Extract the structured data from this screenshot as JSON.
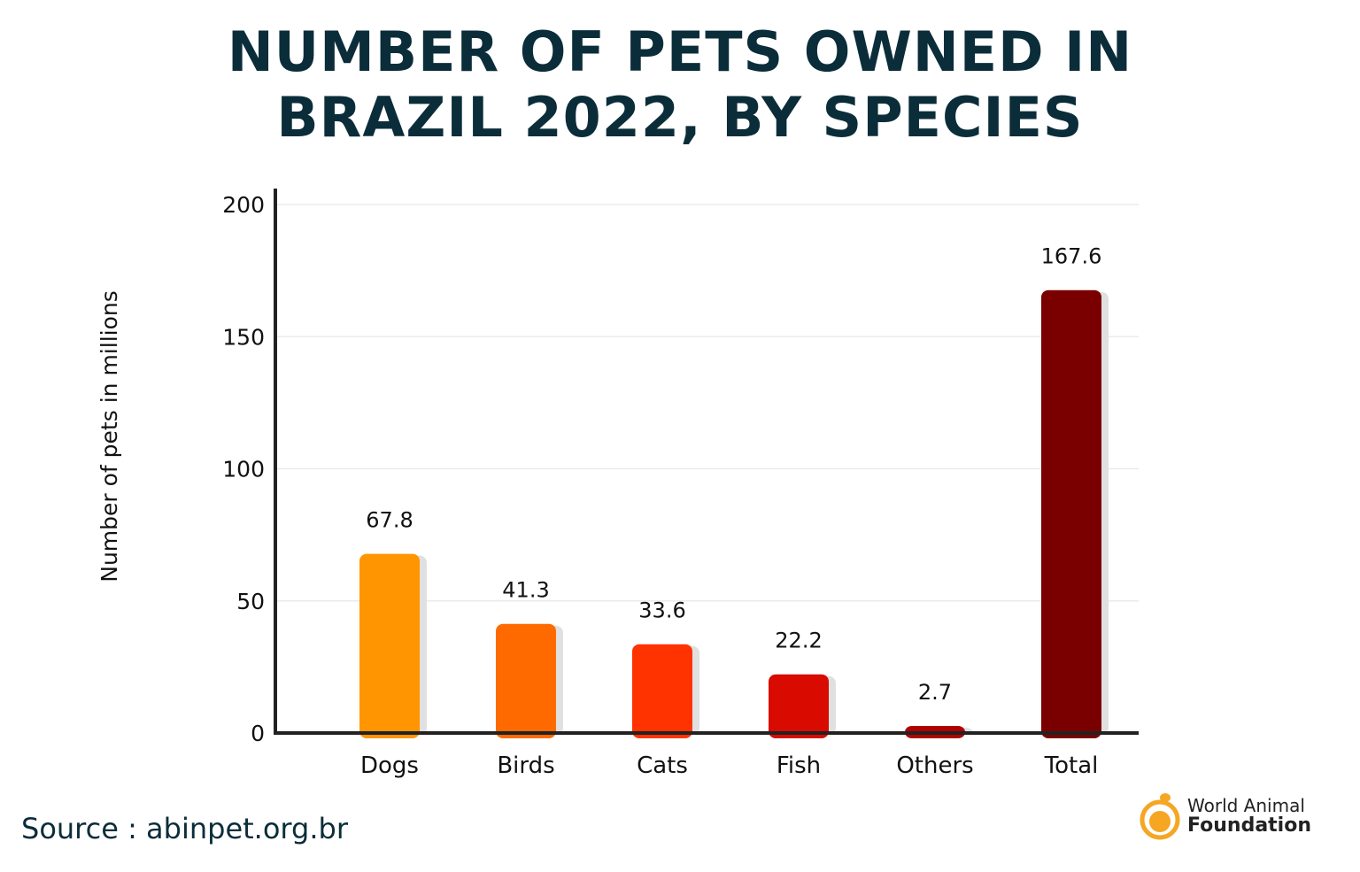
{
  "title_line1": "NUMBER OF PETS OWNED IN",
  "title_line2": "BRAZIL 2022, BY SPECIES",
  "source": "Source : abinpet.org.br",
  "logo": {
    "line1": "World Animal",
    "line2": "Foundation",
    "color": "#f5a623"
  },
  "chart_data": {
    "type": "bar",
    "title": "NUMBER OF PETS OWNED IN BRAZIL 2022, BY SPECIES",
    "xlabel": "",
    "ylabel": "Number of pets in millions",
    "categories": [
      "Dogs",
      "Birds",
      "Cats",
      "Fish",
      "Others",
      "Total"
    ],
    "values": [
      67.8,
      41.3,
      33.6,
      22.2,
      2.7,
      167.6
    ],
    "data_labels": [
      "67.8",
      "41.3",
      "33.6",
      "22.2",
      "2.7",
      "167.6"
    ],
    "colors": [
      "#ff9500",
      "#ff6a00",
      "#ff3300",
      "#d90a00",
      "#b00000",
      "#7a0000"
    ],
    "ylim": [
      0,
      200
    ],
    "yticks": [
      0,
      50,
      100,
      150,
      200
    ],
    "grid": true
  }
}
